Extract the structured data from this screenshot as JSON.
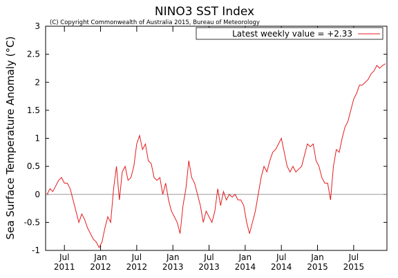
{
  "chart_data": {
    "type": "line",
    "title": "NINO3 SST Index",
    "subtitle": "(C) Copyright Commonwealth of Australia 2015, Bureau of Meteorology",
    "y_label": "Sea Surface Temperature Anomaly (°C)",
    "legend": "top-right",
    "zero_line": true,
    "xlim": [
      2011.24,
      2015.96
    ],
    "ylim": [
      -1,
      3
    ],
    "yticks": [
      -1,
      -0.5,
      0,
      0.5,
      1,
      1.5,
      2,
      2.5,
      3
    ],
    "xticks": [
      {
        "value": 2011.5,
        "label": "Jul\n2011"
      },
      {
        "value": 2012.0,
        "label": "Jan\n2012"
      },
      {
        "value": 2012.5,
        "label": "Jul\n2012"
      },
      {
        "value": 2013.0,
        "label": "Jan\n2013"
      },
      {
        "value": 2013.5,
        "label": "Jul\n2013"
      },
      {
        "value": 2014.0,
        "label": "Jan\n2014"
      },
      {
        "value": 2014.5,
        "label": "Jul\n2014"
      },
      {
        "value": 2015.0,
        "label": "Jan\n2015"
      },
      {
        "value": 2015.5,
        "label": "Jul\n2015"
      }
    ],
    "x": [
      2011.26,
      2011.3,
      2011.34,
      2011.38,
      2011.42,
      2011.46,
      2011.5,
      2011.54,
      2011.58,
      2011.62,
      2011.66,
      2011.7,
      2011.74,
      2011.78,
      2011.82,
      2011.86,
      2011.9,
      2011.94,
      2011.98,
      2012.02,
      2012.06,
      2012.1,
      2012.14,
      2012.18,
      2012.22,
      2012.26,
      2012.3,
      2012.34,
      2012.38,
      2012.42,
      2012.46,
      2012.5,
      2012.54,
      2012.58,
      2012.62,
      2012.66,
      2012.7,
      2012.74,
      2012.78,
      2012.82,
      2012.86,
      2012.9,
      2012.94,
      2012.98,
      2013.02,
      2013.06,
      2013.1,
      2013.14,
      2013.18,
      2013.22,
      2013.26,
      2013.3,
      2013.34,
      2013.38,
      2013.42,
      2013.46,
      2013.5,
      2013.54,
      2013.58,
      2013.62,
      2013.66,
      2013.7,
      2013.74,
      2013.78,
      2013.82,
      2013.86,
      2013.9,
      2013.94,
      2013.98,
      2014.02,
      2014.06,
      2014.1,
      2014.14,
      2014.18,
      2014.22,
      2014.26,
      2014.3,
      2014.34,
      2014.38,
      2014.42,
      2014.46,
      2014.5,
      2014.54,
      2014.58,
      2014.62,
      2014.66,
      2014.7,
      2014.74,
      2014.78,
      2014.82,
      2014.86,
      2014.9,
      2014.94,
      2014.98,
      2015.02,
      2015.06,
      2015.1,
      2015.14,
      2015.18,
      2015.22,
      2015.26,
      2015.3,
      2015.34,
      2015.38,
      2015.42,
      2015.46,
      2015.5,
      2015.54,
      2015.58,
      2015.62,
      2015.66,
      2015.7,
      2015.74,
      2015.78,
      2015.82,
      2015.86,
      2015.9,
      2015.94
    ],
    "series": [
      {
        "name": "Latest weekly value = +2.33",
        "color": "#e41a1c",
        "values": [
          0.0,
          0.1,
          0.05,
          0.15,
          0.25,
          0.3,
          0.2,
          0.2,
          0.1,
          -0.1,
          -0.3,
          -0.5,
          -0.35,
          -0.45,
          -0.6,
          -0.7,
          -0.8,
          -0.85,
          -0.95,
          -0.85,
          -0.6,
          -0.4,
          -0.5,
          0.1,
          0.5,
          -0.1,
          0.4,
          0.5,
          0.25,
          0.3,
          0.5,
          0.9,
          1.05,
          0.8,
          0.9,
          0.6,
          0.55,
          0.3,
          0.25,
          0.3,
          0.0,
          0.2,
          -0.1,
          -0.3,
          -0.4,
          -0.5,
          -0.7,
          -0.2,
          0.1,
          0.6,
          0.3,
          0.2,
          0.0,
          -0.2,
          -0.5,
          -0.3,
          -0.4,
          -0.5,
          -0.3,
          0.1,
          -0.2,
          0.05,
          -0.1,
          0.0,
          -0.05,
          0.0,
          -0.1,
          -0.1,
          -0.2,
          -0.5,
          -0.7,
          -0.5,
          -0.3,
          0.0,
          0.3,
          0.5,
          0.4,
          0.6,
          0.75,
          0.8,
          0.9,
          1.0,
          0.75,
          0.5,
          0.4,
          0.5,
          0.4,
          0.45,
          0.5,
          0.7,
          0.9,
          0.85,
          0.9,
          0.6,
          0.5,
          0.3,
          0.2,
          0.2,
          -0.1,
          0.5,
          0.8,
          0.75,
          1.0,
          1.2,
          1.3,
          1.5,
          1.7,
          1.8,
          1.95,
          1.95,
          2.0,
          2.05,
          2.15,
          2.2,
          2.3,
          2.25,
          2.3,
          2.33
        ]
      }
    ]
  }
}
